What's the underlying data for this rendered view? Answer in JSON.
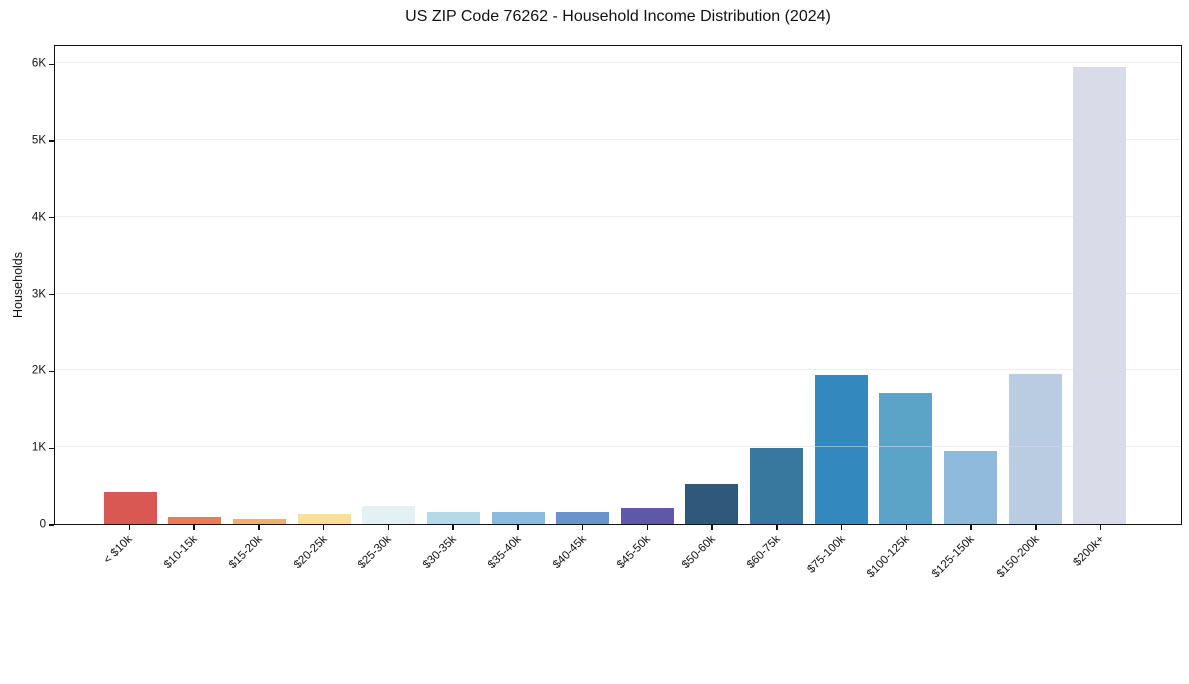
{
  "figure": {
    "background_color": "#ffffff",
    "spine_color": "#111111",
    "grid_color": "#dedede"
  },
  "chart_data": {
    "type": "bar",
    "title": "US ZIP Code 76262 - Household Income Distribution (2024)",
    "xlabel": "",
    "ylabel": "Households",
    "ylim": [
      0,
      6250
    ],
    "grid": "horizontal-y",
    "legend": "none",
    "x_tick_rotation_deg": 45,
    "yticks": [
      {
        "value": 0,
        "label": "0"
      },
      {
        "value": 1000,
        "label": "1K"
      },
      {
        "value": 2000,
        "label": "2K"
      },
      {
        "value": 3000,
        "label": "3K"
      },
      {
        "value": 4000,
        "label": "4K"
      },
      {
        "value": 5000,
        "label": "5K"
      },
      {
        "value": 6000,
        "label": "6K"
      }
    ],
    "categories": [
      "< $10k",
      "$10-15k",
      "$15-20k",
      "$20-25k",
      "$25-30k",
      "$30-35k",
      "$35-40k",
      "$40-45k",
      "$45-50k",
      "$50-60k",
      "$60-75k",
      "$75-100k",
      "$100-125k",
      "$125-150k",
      "$150-200k",
      "$200k+"
    ],
    "values": [
      420,
      90,
      60,
      130,
      230,
      160,
      160,
      160,
      215,
      515,
      985,
      1940,
      1700,
      950,
      1950,
      5950
    ],
    "bar_colors": [
      "#d95853",
      "#ec7b52",
      "#f5ae6a",
      "#fbdf96",
      "#e4f1f3",
      "#b5d9e6",
      "#8bbcdd",
      "#6b93cb",
      "#5f58a8",
      "#30587a",
      "#38789e",
      "#3389bd",
      "#5ba3c7",
      "#90badb",
      "#b9cce1",
      "#d9dbe9"
    ]
  }
}
